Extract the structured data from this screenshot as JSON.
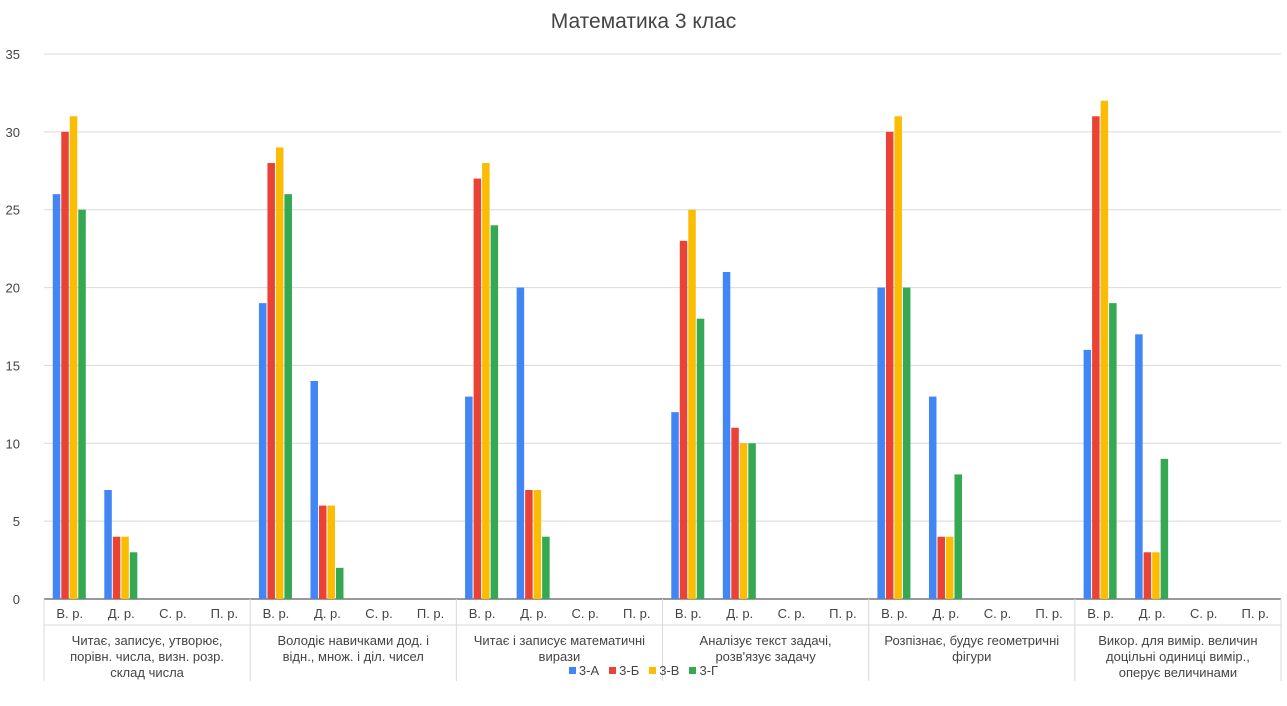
{
  "chart_data": {
    "type": "bar",
    "title": "Математика 3 клас",
    "ylim": [
      0,
      35
    ],
    "y_ticks": [
      0,
      5,
      10,
      15,
      20,
      25,
      30,
      35
    ],
    "grid": true,
    "legend_position": "bottom",
    "sub_categories": [
      "В. р.",
      "Д. р.",
      "С. р.",
      "П. р."
    ],
    "groups": [
      {
        "label": "Читає, записує, утворює, порівн. числа, визн. розр. склад числа"
      },
      {
        "label": "Володіє навичками дод. і відн., множ. і діл. чисел"
      },
      {
        "label": "Читає і записує математичні вирази"
      },
      {
        "label": "Аналізує текст задачі, розв'язує задачу"
      },
      {
        "label": "Розпізнає, будує геометричні фігури"
      },
      {
        "label": "Викор. для вимір. величин доцільні одиниці вимір., оперує величинами"
      }
    ],
    "series": [
      {
        "name": "3-А",
        "color": "#4285f4",
        "values": [
          [
            26,
            7,
            0,
            0
          ],
          [
            19,
            14,
            0,
            0
          ],
          [
            13,
            20,
            0,
            0
          ],
          [
            12,
            21,
            0,
            0
          ],
          [
            20,
            13,
            0,
            0
          ],
          [
            16,
            17,
            0,
            0
          ]
        ]
      },
      {
        "name": "3-Б",
        "color": "#ea4335",
        "values": [
          [
            30,
            4,
            0,
            0
          ],
          [
            28,
            6,
            0,
            0
          ],
          [
            27,
            7,
            0,
            0
          ],
          [
            23,
            11,
            0,
            0
          ],
          [
            30,
            4,
            0,
            0
          ],
          [
            31,
            3,
            0,
            0
          ]
        ]
      },
      {
        "name": "3-В",
        "color": "#fbbc04",
        "values": [
          [
            31,
            4,
            0,
            0
          ],
          [
            29,
            6,
            0,
            0
          ],
          [
            28,
            7,
            0,
            0
          ],
          [
            25,
            10,
            0,
            0
          ],
          [
            31,
            4,
            0,
            0
          ],
          [
            32,
            3,
            0,
            0
          ]
        ]
      },
      {
        "name": "3-Г",
        "color": "#34a853",
        "values": [
          [
            25,
            3,
            0,
            0
          ],
          [
            26,
            2,
            0,
            0
          ],
          [
            24,
            4,
            0,
            0
          ],
          [
            18,
            10,
            0,
            0
          ],
          [
            20,
            8,
            0,
            0
          ],
          [
            19,
            9,
            0,
            0
          ]
        ]
      }
    ]
  }
}
